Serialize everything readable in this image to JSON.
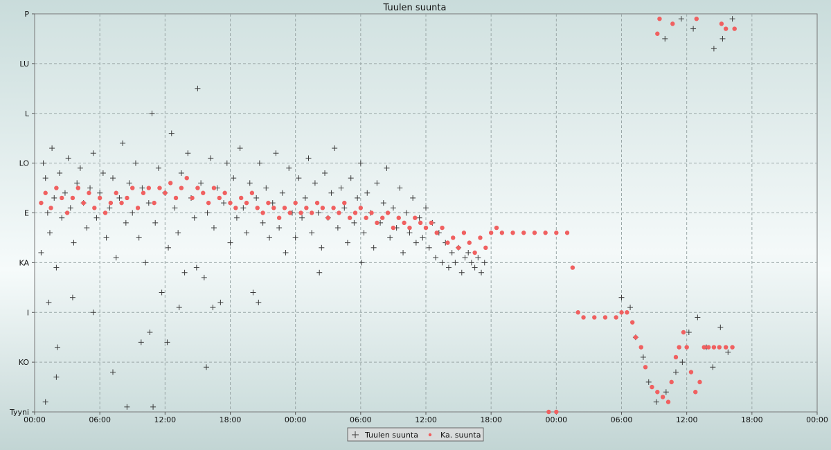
{
  "chart_data": {
    "type": "scatter",
    "title": "Tuulen suunta",
    "xlabel": "",
    "ylabel": "",
    "y_categories": [
      "Tyyni",
      "KO",
      "I",
      "KA",
      "E",
      "LO",
      "L",
      "LU",
      "P"
    ],
    "ylim": [
      0,
      8
    ],
    "x_unit": "hours",
    "xlim": [
      0,
      72
    ],
    "x_tick_labels": [
      "00:00",
      "06:00",
      "12:00",
      "18:00",
      "00:00",
      "06:00",
      "12:00",
      "18:00",
      "00:00",
      "06:00",
      "12:00",
      "18:00",
      "00:00"
    ],
    "grid": true,
    "legend_position": "bottom-center",
    "series": [
      {
        "name": "Tuulen suunta",
        "marker": "plus",
        "color": "#3a3a3a",
        "points": [
          [
            0.6,
            3.2
          ],
          [
            0.8,
            5.0
          ],
          [
            1.0,
            4.7
          ],
          [
            1.2,
            4.0
          ],
          [
            1.4,
            3.6
          ],
          [
            1.6,
            5.3
          ],
          [
            1.8,
            4.3
          ],
          [
            2.0,
            2.9
          ],
          [
            2.3,
            4.8
          ],
          [
            2.5,
            3.9
          ],
          [
            2.8,
            4.4
          ],
          [
            3.1,
            5.1
          ],
          [
            3.3,
            4.1
          ],
          [
            3.6,
            3.4
          ],
          [
            3.9,
            4.6
          ],
          [
            4.2,
            4.9
          ],
          [
            4.5,
            4.2
          ],
          [
            4.8,
            3.7
          ],
          [
            5.1,
            4.5
          ],
          [
            5.4,
            5.2
          ],
          [
            5.7,
            3.9
          ],
          [
            6.0,
            4.4
          ],
          [
            6.3,
            4.8
          ],
          [
            6.6,
            3.5
          ],
          [
            6.9,
            4.1
          ],
          [
            7.2,
            4.7
          ],
          [
            7.5,
            3.1
          ],
          [
            7.8,
            4.3
          ],
          [
            8.1,
            5.4
          ],
          [
            8.4,
            3.8
          ],
          [
            8.7,
            4.6
          ],
          [
            9.0,
            4.0
          ],
          [
            9.3,
            5.0
          ],
          [
            9.6,
            3.5
          ],
          [
            9.9,
            4.5
          ],
          [
            10.2,
            3.0
          ],
          [
            10.5,
            4.2
          ],
          [
            10.8,
            6.0
          ],
          [
            11.1,
            3.8
          ],
          [
            11.4,
            4.9
          ],
          [
            11.7,
            2.4
          ],
          [
            12.0,
            4.4
          ],
          [
            12.3,
            3.3
          ],
          [
            12.6,
            5.6
          ],
          [
            12.9,
            4.1
          ],
          [
            13.2,
            3.6
          ],
          [
            13.5,
            4.8
          ],
          [
            13.8,
            2.8
          ],
          [
            14.1,
            5.2
          ],
          [
            14.4,
            4.3
          ],
          [
            14.7,
            3.9
          ],
          [
            15.0,
            6.5
          ],
          [
            15.3,
            4.6
          ],
          [
            15.6,
            2.7
          ],
          [
            15.9,
            4.0
          ],
          [
            16.2,
            5.1
          ],
          [
            16.5,
            3.7
          ],
          [
            16.8,
            4.5
          ],
          [
            17.1,
            2.2
          ],
          [
            17.4,
            4.2
          ],
          [
            17.7,
            5.0
          ],
          [
            18.0,
            3.4
          ],
          [
            18.3,
            4.7
          ],
          [
            18.6,
            3.9
          ],
          [
            18.9,
            5.3
          ],
          [
            19.2,
            4.1
          ],
          [
            19.5,
            3.6
          ],
          [
            19.8,
            4.6
          ],
          [
            20.1,
            2.4
          ],
          [
            20.4,
            4.3
          ],
          [
            20.7,
            5.0
          ],
          [
            21.0,
            3.8
          ],
          [
            21.3,
            4.5
          ],
          [
            21.6,
            3.5
          ],
          [
            21.9,
            4.2
          ],
          [
            22.2,
            5.2
          ],
          [
            22.5,
            3.7
          ],
          [
            22.8,
            4.4
          ],
          [
            23.1,
            3.2
          ],
          [
            23.4,
            4.9
          ],
          [
            23.7,
            4.0
          ],
          [
            24.0,
            3.5
          ],
          [
            24.3,
            4.7
          ],
          [
            24.6,
            3.9
          ],
          [
            24.9,
            4.3
          ],
          [
            25.2,
            5.1
          ],
          [
            25.5,
            3.6
          ],
          [
            25.8,
            4.6
          ],
          [
            26.1,
            4.0
          ],
          [
            26.4,
            3.3
          ],
          [
            26.7,
            4.8
          ],
          [
            27.0,
            3.9
          ],
          [
            27.3,
            4.4
          ],
          [
            27.6,
            5.3
          ],
          [
            27.9,
            3.7
          ],
          [
            28.2,
            4.5
          ],
          [
            28.5,
            4.1
          ],
          [
            28.8,
            3.4
          ],
          [
            29.1,
            4.7
          ],
          [
            29.4,
            3.8
          ],
          [
            29.7,
            4.3
          ],
          [
            30.0,
            5.0
          ],
          [
            30.3,
            3.6
          ],
          [
            30.6,
            4.4
          ],
          [
            30.9,
            4.0
          ],
          [
            31.2,
            3.3
          ],
          [
            31.5,
            4.6
          ],
          [
            31.8,
            3.8
          ],
          [
            32.1,
            4.2
          ],
          [
            32.4,
            4.9
          ],
          [
            32.7,
            3.5
          ],
          [
            33.0,
            4.1
          ],
          [
            33.3,
            3.7
          ],
          [
            33.6,
            4.5
          ],
          [
            33.9,
            3.2
          ],
          [
            34.2,
            4.0
          ],
          [
            34.5,
            3.6
          ],
          [
            34.8,
            4.3
          ],
          [
            35.1,
            3.4
          ],
          [
            35.4,
            3.9
          ],
          [
            35.7,
            3.5
          ],
          [
            36.0,
            4.1
          ],
          [
            36.3,
            3.3
          ],
          [
            36.6,
            3.8
          ],
          [
            36.9,
            3.1
          ],
          [
            37.2,
            3.6
          ],
          [
            37.5,
            3.0
          ],
          [
            37.8,
            3.4
          ],
          [
            38.1,
            2.9
          ],
          [
            38.4,
            3.2
          ],
          [
            38.7,
            3.0
          ],
          [
            39.0,
            3.3
          ],
          [
            39.3,
            2.8
          ],
          [
            39.6,
            3.1
          ],
          [
            39.9,
            3.2
          ],
          [
            40.2,
            3.0
          ],
          [
            40.5,
            2.9
          ],
          [
            40.8,
            3.1
          ],
          [
            41.1,
            2.8
          ],
          [
            41.4,
            3.0
          ],
          [
            1.3,
            2.2
          ],
          [
            2.1,
            1.3
          ],
          [
            3.5,
            2.3
          ],
          [
            5.4,
            2.0
          ],
          [
            9.8,
            1.4
          ],
          [
            10.6,
            1.6
          ],
          [
            12.2,
            1.4
          ],
          [
            13.3,
            2.1
          ],
          [
            14.9,
            2.9
          ],
          [
            16.4,
            2.1
          ],
          [
            20.6,
            2.2
          ],
          [
            26.2,
            2.8
          ],
          [
            30.1,
            3.0
          ],
          [
            1.0,
            0.2
          ],
          [
            8.5,
            0.1
          ],
          [
            10.9,
            0.1
          ],
          [
            2.0,
            0.7
          ],
          [
            7.2,
            0.8
          ],
          [
            15.8,
            0.9
          ],
          [
            54.0,
            2.3
          ],
          [
            54.8,
            2.1
          ],
          [
            55.3,
            1.5
          ],
          [
            56.0,
            1.1
          ],
          [
            56.5,
            0.6
          ],
          [
            57.2,
            0.2
          ],
          [
            58.1,
            0.4
          ],
          [
            59.0,
            0.8
          ],
          [
            59.6,
            1.0
          ],
          [
            60.2,
            1.6
          ],
          [
            61.0,
            1.9
          ],
          [
            61.8,
            1.3
          ],
          [
            62.4,
            0.9
          ],
          [
            63.1,
            1.7
          ],
          [
            63.8,
            1.2
          ],
          [
            58.0,
            7.5
          ],
          [
            59.5,
            7.9
          ],
          [
            60.6,
            7.7
          ],
          [
            62.5,
            7.3
          ],
          [
            63.3,
            7.5
          ],
          [
            64.2,
            7.9
          ]
        ]
      },
      {
        "name": "Ka. suunta",
        "marker": "dot",
        "color": "#f06060",
        "points": [
          [
            0.6,
            4.2
          ],
          [
            1.0,
            4.4
          ],
          [
            1.5,
            4.1
          ],
          [
            2.0,
            4.5
          ],
          [
            2.5,
            4.3
          ],
          [
            3.0,
            4.0
          ],
          [
            3.5,
            4.3
          ],
          [
            4.0,
            4.5
          ],
          [
            4.5,
            4.2
          ],
          [
            5.0,
            4.4
          ],
          [
            5.5,
            4.1
          ],
          [
            6.0,
            4.3
          ],
          [
            6.5,
            4.0
          ],
          [
            7.0,
            4.2
          ],
          [
            7.5,
            4.4
          ],
          [
            8.0,
            4.2
          ],
          [
            8.5,
            4.3
          ],
          [
            9.0,
            4.5
          ],
          [
            9.5,
            4.1
          ],
          [
            10.0,
            4.4
          ],
          [
            10.5,
            4.5
          ],
          [
            11.0,
            4.2
          ],
          [
            11.5,
            4.5
          ],
          [
            12.0,
            4.4
          ],
          [
            12.5,
            4.6
          ],
          [
            13.0,
            4.3
          ],
          [
            13.5,
            4.5
          ],
          [
            14.0,
            4.7
          ],
          [
            14.5,
            4.3
          ],
          [
            15.0,
            4.5
          ],
          [
            15.5,
            4.4
          ],
          [
            16.0,
            4.2
          ],
          [
            16.5,
            4.5
          ],
          [
            17.0,
            4.3
          ],
          [
            17.5,
            4.4
          ],
          [
            18.0,
            4.2
          ],
          [
            18.5,
            4.1
          ],
          [
            19.0,
            4.3
          ],
          [
            19.5,
            4.2
          ],
          [
            20.0,
            4.4
          ],
          [
            20.5,
            4.1
          ],
          [
            21.0,
            4.0
          ],
          [
            21.5,
            4.2
          ],
          [
            22.0,
            4.1
          ],
          [
            22.5,
            3.9
          ],
          [
            23.0,
            4.1
          ],
          [
            23.5,
            4.0
          ],
          [
            24.0,
            4.2
          ],
          [
            24.5,
            4.0
          ],
          [
            25.0,
            4.1
          ],
          [
            25.5,
            4.0
          ],
          [
            26.0,
            4.2
          ],
          [
            26.5,
            4.1
          ],
          [
            27.0,
            3.9
          ],
          [
            27.5,
            4.1
          ],
          [
            28.0,
            4.0
          ],
          [
            28.5,
            4.2
          ],
          [
            29.0,
            3.9
          ],
          [
            29.5,
            4.0
          ],
          [
            30.0,
            4.1
          ],
          [
            30.5,
            3.9
          ],
          [
            31.0,
            4.0
          ],
          [
            31.5,
            3.8
          ],
          [
            32.0,
            3.9
          ],
          [
            32.5,
            4.0
          ],
          [
            33.0,
            3.7
          ],
          [
            33.5,
            3.9
          ],
          [
            34.0,
            3.8
          ],
          [
            34.5,
            3.7
          ],
          [
            35.0,
            3.9
          ],
          [
            35.5,
            3.8
          ],
          [
            36.0,
            3.7
          ],
          [
            36.5,
            3.8
          ],
          [
            37.0,
            3.6
          ],
          [
            37.5,
            3.7
          ],
          [
            38.0,
            3.4
          ],
          [
            38.5,
            3.5
          ],
          [
            39.0,
            3.3
          ],
          [
            39.5,
            3.6
          ],
          [
            40.0,
            3.4
          ],
          [
            40.5,
            3.2
          ],
          [
            41.0,
            3.5
          ],
          [
            41.5,
            3.3
          ],
          [
            42.0,
            3.6
          ],
          [
            42.5,
            3.7
          ],
          [
            43.0,
            3.6
          ],
          [
            44.0,
            3.6
          ],
          [
            45.0,
            3.6
          ],
          [
            46.0,
            3.6
          ],
          [
            47.0,
            3.6
          ],
          [
            48.0,
            3.6
          ],
          [
            49.0,
            3.6
          ],
          [
            49.5,
            2.9
          ],
          [
            50.0,
            2.0
          ],
          [
            50.5,
            1.9
          ],
          [
            51.5,
            1.9
          ],
          [
            52.5,
            1.9
          ],
          [
            53.5,
            1.9
          ],
          [
            54.0,
            2.0
          ],
          [
            54.5,
            2.0
          ],
          [
            55.0,
            1.8
          ],
          [
            55.3,
            1.5
          ],
          [
            55.8,
            1.3
          ],
          [
            56.2,
            0.9
          ],
          [
            56.8,
            0.5
          ],
          [
            57.3,
            0.4
          ],
          [
            57.8,
            0.3
          ],
          [
            58.3,
            0.2
          ],
          [
            58.6,
            0.6
          ],
          [
            59.0,
            1.1
          ],
          [
            59.3,
            1.3
          ],
          [
            59.7,
            1.6
          ],
          [
            60.0,
            1.3
          ],
          [
            60.4,
            0.8
          ],
          [
            60.8,
            0.4
          ],
          [
            61.2,
            0.6
          ],
          [
            61.6,
            1.3
          ],
          [
            62.0,
            1.3
          ],
          [
            62.5,
            1.3
          ],
          [
            63.0,
            1.3
          ],
          [
            63.6,
            1.3
          ],
          [
            64.2,
            1.3
          ],
          [
            57.3,
            7.6
          ],
          [
            57.5,
            7.9
          ],
          [
            58.7,
            7.8
          ],
          [
            60.9,
            7.9
          ],
          [
            63.2,
            7.8
          ],
          [
            63.6,
            7.7
          ],
          [
            64.4,
            7.7
          ],
          [
            47.3,
            0.0
          ],
          [
            48.0,
            0.0
          ]
        ]
      }
    ]
  }
}
